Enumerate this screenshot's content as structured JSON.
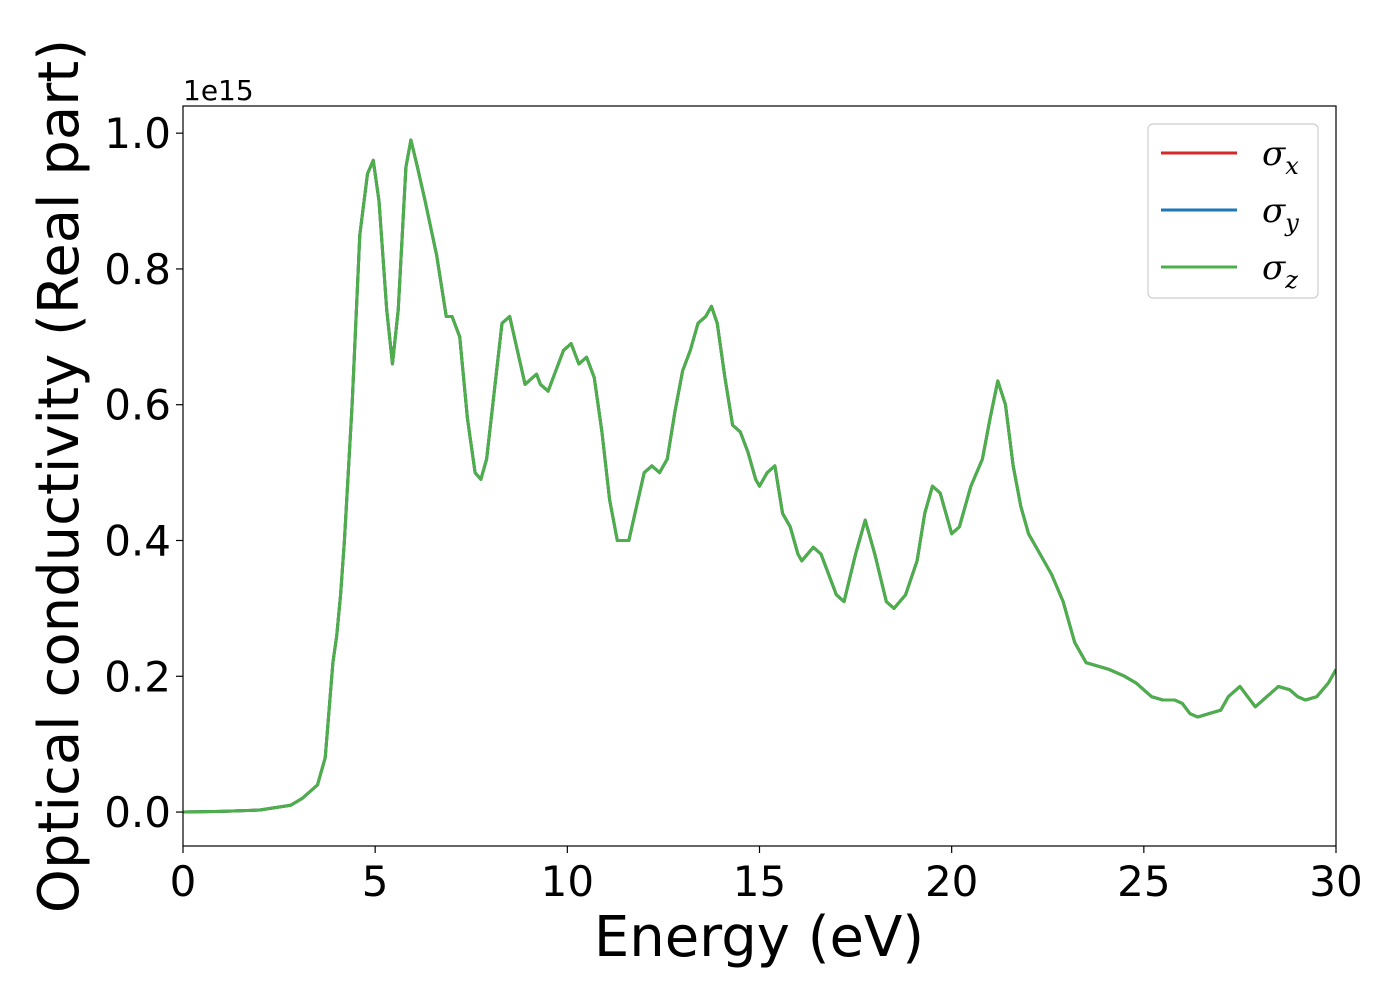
{
  "chart_data": {
    "type": "line",
    "xlabel": "Energy (eV)",
    "ylabel": "Optical conductivity (Real part)",
    "y_offset_label": "1e15",
    "xlim": [
      0,
      30
    ],
    "ylim": [
      -0.05,
      1.04
    ],
    "x_ticks": [
      0,
      5,
      10,
      15,
      20,
      25,
      30
    ],
    "y_ticks": [
      0.0,
      0.2,
      0.4,
      0.6,
      0.8,
      1.0
    ],
    "x_tick_labels": [
      "0",
      "5",
      "10",
      "15",
      "20",
      "25",
      "30"
    ],
    "y_tick_labels": [
      "0.0",
      "0.2",
      "0.4",
      "0.6",
      "0.8",
      "1.0"
    ],
    "grid": false,
    "legend_position": "top-right",
    "legend": [
      {
        "symbol": "σ",
        "sub": "x",
        "color": "#d62728"
      },
      {
        "symbol": "σ",
        "sub": "y",
        "color": "#1f77b4"
      },
      {
        "symbol": "σ",
        "sub": "z",
        "color": "#4daf4a"
      }
    ],
    "series": [
      {
        "color": "#d62728",
        "x": [
          0,
          1,
          2,
          2.8,
          3.1,
          3.5,
          3.7,
          3.8,
          3.9,
          4.0,
          4.1,
          4.2,
          4.4,
          4.6,
          4.8,
          4.95,
          5.1,
          5.3,
          5.45,
          5.6,
          5.8,
          5.93,
          6.1,
          6.3,
          6.6,
          6.85,
          7.0,
          7.2,
          7.4,
          7.6,
          7.75,
          7.9,
          8.1,
          8.3,
          8.5,
          8.7,
          8.9,
          9.1,
          9.2,
          9.3,
          9.5,
          9.7,
          9.9,
          10.1,
          10.3,
          10.5,
          10.7,
          10.9,
          11.1,
          11.3,
          11.6,
          11.8,
          12.0,
          12.2,
          12.4,
          12.6,
          12.8,
          13.0,
          13.2,
          13.4,
          13.6,
          13.75,
          13.9,
          14.1,
          14.3,
          14.5,
          14.7,
          14.9,
          15.0,
          15.2,
          15.4,
          15.6,
          15.8,
          16.0,
          16.1,
          16.4,
          16.6,
          16.8,
          17.0,
          17.2,
          17.5,
          17.75,
          18.0,
          18.3,
          18.5,
          18.8,
          19.1,
          19.3,
          19.5,
          19.7,
          20.0,
          20.2,
          20.5,
          20.8,
          21.0,
          21.2,
          21.4,
          21.6,
          21.8,
          22.0,
          22.3,
          22.6,
          22.9,
          23.2,
          23.5,
          23.8,
          24.1,
          24.5,
          24.8,
          25.0,
          25.2,
          25.5,
          25.8,
          26.0,
          26.2,
          26.4,
          26.7,
          27.0,
          27.2,
          27.5,
          27.7,
          27.9,
          28.2,
          28.5,
          28.8,
          29.0,
          29.2,
          29.5,
          29.8,
          30.0
        ],
        "y": [
          0.0,
          0.001,
          0.003,
          0.01,
          0.02,
          0.04,
          0.08,
          0.15,
          0.22,
          0.26,
          0.32,
          0.4,
          0.6,
          0.85,
          0.94,
          0.96,
          0.9,
          0.74,
          0.66,
          0.74,
          0.95,
          0.99,
          0.95,
          0.9,
          0.82,
          0.73,
          0.73,
          0.7,
          0.58,
          0.5,
          0.49,
          0.52,
          0.62,
          0.72,
          0.73,
          0.68,
          0.63,
          0.64,
          0.645,
          0.63,
          0.62,
          0.65,
          0.68,
          0.69,
          0.66,
          0.67,
          0.64,
          0.56,
          0.46,
          0.4,
          0.4,
          0.45,
          0.5,
          0.51,
          0.5,
          0.52,
          0.59,
          0.65,
          0.68,
          0.72,
          0.73,
          0.745,
          0.72,
          0.64,
          0.57,
          0.56,
          0.53,
          0.49,
          0.48,
          0.5,
          0.51,
          0.44,
          0.42,
          0.38,
          0.37,
          0.39,
          0.38,
          0.35,
          0.32,
          0.31,
          0.38,
          0.43,
          0.38,
          0.31,
          0.3,
          0.32,
          0.37,
          0.44,
          0.48,
          0.47,
          0.41,
          0.42,
          0.48,
          0.52,
          0.58,
          0.635,
          0.6,
          0.51,
          0.45,
          0.41,
          0.38,
          0.35,
          0.31,
          0.25,
          0.22,
          0.215,
          0.21,
          0.2,
          0.19,
          0.18,
          0.17,
          0.165,
          0.165,
          0.16,
          0.145,
          0.14,
          0.145,
          0.15,
          0.17,
          0.185,
          0.17,
          0.155,
          0.17,
          0.185,
          0.18,
          0.17,
          0.165,
          0.17,
          0.19,
          0.21
        ]
      },
      {
        "color": "#1f77b4",
        "x": [
          0,
          1,
          2,
          2.8,
          3.1,
          3.5,
          3.7,
          3.8,
          3.9,
          4.0,
          4.1,
          4.2,
          4.4,
          4.6,
          4.8,
          4.95,
          5.1,
          5.3,
          5.45,
          5.6,
          5.8,
          5.93,
          6.1,
          6.3,
          6.6,
          6.85,
          7.0,
          7.2,
          7.4,
          7.6,
          7.75,
          7.9,
          8.1,
          8.3,
          8.5,
          8.7,
          8.9,
          9.1,
          9.2,
          9.3,
          9.5,
          9.7,
          9.9,
          10.1,
          10.3,
          10.5,
          10.7,
          10.9,
          11.1,
          11.3,
          11.6,
          11.8,
          12.0,
          12.2,
          12.4,
          12.6,
          12.8,
          13.0,
          13.2,
          13.4,
          13.6,
          13.75,
          13.9,
          14.1,
          14.3,
          14.5,
          14.7,
          14.9,
          15.0,
          15.2,
          15.4,
          15.6,
          15.8,
          16.0,
          16.1,
          16.4,
          16.6,
          16.8,
          17.0,
          17.2,
          17.5,
          17.75,
          18.0,
          18.3,
          18.5,
          18.8,
          19.1,
          19.3,
          19.5,
          19.7,
          20.0,
          20.2,
          20.5,
          20.8,
          21.0,
          21.2,
          21.4,
          21.6,
          21.8,
          22.0,
          22.3,
          22.6,
          22.9,
          23.2,
          23.5,
          23.8,
          24.1,
          24.5,
          24.8,
          25.0,
          25.2,
          25.5,
          25.8,
          26.0,
          26.2,
          26.4,
          26.7,
          27.0,
          27.2,
          27.5,
          27.7,
          27.9,
          28.2,
          28.5,
          28.8,
          29.0,
          29.2,
          29.5,
          29.8,
          30.0
        ],
        "y": [
          0.0,
          0.001,
          0.003,
          0.01,
          0.02,
          0.04,
          0.08,
          0.15,
          0.22,
          0.26,
          0.32,
          0.4,
          0.6,
          0.85,
          0.94,
          0.96,
          0.9,
          0.74,
          0.66,
          0.74,
          0.95,
          0.99,
          0.95,
          0.9,
          0.82,
          0.73,
          0.73,
          0.7,
          0.58,
          0.5,
          0.49,
          0.52,
          0.62,
          0.72,
          0.73,
          0.68,
          0.63,
          0.64,
          0.645,
          0.63,
          0.62,
          0.65,
          0.68,
          0.69,
          0.66,
          0.67,
          0.64,
          0.56,
          0.46,
          0.4,
          0.4,
          0.45,
          0.5,
          0.51,
          0.5,
          0.52,
          0.59,
          0.65,
          0.68,
          0.72,
          0.73,
          0.745,
          0.72,
          0.64,
          0.57,
          0.56,
          0.53,
          0.49,
          0.48,
          0.5,
          0.51,
          0.44,
          0.42,
          0.38,
          0.37,
          0.39,
          0.38,
          0.35,
          0.32,
          0.31,
          0.38,
          0.43,
          0.38,
          0.31,
          0.3,
          0.32,
          0.37,
          0.44,
          0.48,
          0.47,
          0.41,
          0.42,
          0.48,
          0.52,
          0.58,
          0.635,
          0.6,
          0.51,
          0.45,
          0.41,
          0.38,
          0.35,
          0.31,
          0.25,
          0.22,
          0.215,
          0.21,
          0.2,
          0.19,
          0.18,
          0.17,
          0.165,
          0.165,
          0.16,
          0.145,
          0.14,
          0.145,
          0.15,
          0.17,
          0.185,
          0.17,
          0.155,
          0.17,
          0.185,
          0.18,
          0.17,
          0.165,
          0.17,
          0.19,
          0.21
        ]
      },
      {
        "color": "#4daf4a",
        "x": [
          0,
          1,
          2,
          2.8,
          3.1,
          3.5,
          3.7,
          3.8,
          3.9,
          4.0,
          4.1,
          4.2,
          4.4,
          4.6,
          4.8,
          4.95,
          5.1,
          5.3,
          5.45,
          5.6,
          5.8,
          5.93,
          6.1,
          6.3,
          6.6,
          6.85,
          7.0,
          7.2,
          7.4,
          7.6,
          7.75,
          7.9,
          8.1,
          8.3,
          8.5,
          8.7,
          8.9,
          9.1,
          9.2,
          9.3,
          9.5,
          9.7,
          9.9,
          10.1,
          10.3,
          10.5,
          10.7,
          10.9,
          11.1,
          11.3,
          11.6,
          11.8,
          12.0,
          12.2,
          12.4,
          12.6,
          12.8,
          13.0,
          13.2,
          13.4,
          13.6,
          13.75,
          13.9,
          14.1,
          14.3,
          14.5,
          14.7,
          14.9,
          15.0,
          15.2,
          15.4,
          15.6,
          15.8,
          16.0,
          16.1,
          16.4,
          16.6,
          16.8,
          17.0,
          17.2,
          17.5,
          17.75,
          18.0,
          18.3,
          18.5,
          18.8,
          19.1,
          19.3,
          19.5,
          19.7,
          20.0,
          20.2,
          20.5,
          20.8,
          21.0,
          21.2,
          21.4,
          21.6,
          21.8,
          22.0,
          22.3,
          22.6,
          22.9,
          23.2,
          23.5,
          23.8,
          24.1,
          24.5,
          24.8,
          25.0,
          25.2,
          25.5,
          25.8,
          26.0,
          26.2,
          26.4,
          26.7,
          27.0,
          27.2,
          27.5,
          27.7,
          27.9,
          28.2,
          28.5,
          28.8,
          29.0,
          29.2,
          29.5,
          29.8,
          30.0
        ],
        "y": [
          0.0,
          0.001,
          0.003,
          0.01,
          0.02,
          0.04,
          0.08,
          0.15,
          0.22,
          0.26,
          0.32,
          0.4,
          0.6,
          0.85,
          0.94,
          0.96,
          0.9,
          0.74,
          0.66,
          0.74,
          0.95,
          0.99,
          0.95,
          0.9,
          0.82,
          0.73,
          0.73,
          0.7,
          0.58,
          0.5,
          0.49,
          0.52,
          0.62,
          0.72,
          0.73,
          0.68,
          0.63,
          0.64,
          0.645,
          0.63,
          0.62,
          0.65,
          0.68,
          0.69,
          0.66,
          0.67,
          0.64,
          0.56,
          0.46,
          0.4,
          0.4,
          0.45,
          0.5,
          0.51,
          0.5,
          0.52,
          0.59,
          0.65,
          0.68,
          0.72,
          0.73,
          0.745,
          0.72,
          0.64,
          0.57,
          0.56,
          0.53,
          0.49,
          0.48,
          0.5,
          0.51,
          0.44,
          0.42,
          0.38,
          0.37,
          0.39,
          0.38,
          0.35,
          0.32,
          0.31,
          0.38,
          0.43,
          0.38,
          0.31,
          0.3,
          0.32,
          0.37,
          0.44,
          0.48,
          0.47,
          0.41,
          0.42,
          0.48,
          0.52,
          0.58,
          0.635,
          0.6,
          0.51,
          0.45,
          0.41,
          0.38,
          0.35,
          0.31,
          0.25,
          0.22,
          0.215,
          0.21,
          0.2,
          0.19,
          0.18,
          0.17,
          0.165,
          0.165,
          0.16,
          0.145,
          0.14,
          0.145,
          0.15,
          0.17,
          0.185,
          0.17,
          0.155,
          0.17,
          0.185,
          0.18,
          0.17,
          0.165,
          0.17,
          0.19,
          0.21
        ]
      }
    ]
  }
}
